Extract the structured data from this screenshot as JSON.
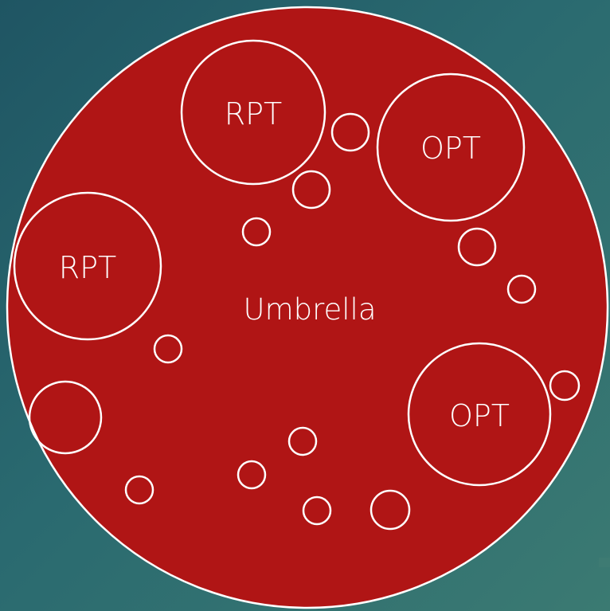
{
  "colors": {
    "background_start": "#1f5563",
    "background_end": "#3b7a72",
    "umbrella_fill": "#b01515",
    "outline": "#ffffff",
    "text": "#ffffff"
  },
  "umbrella": {
    "label": "Umbrella"
  },
  "programs": [
    {
      "label": "RPT"
    },
    {
      "label": "OPT"
    },
    {
      "label": "RPT"
    },
    {
      "label": "OPT"
    }
  ]
}
